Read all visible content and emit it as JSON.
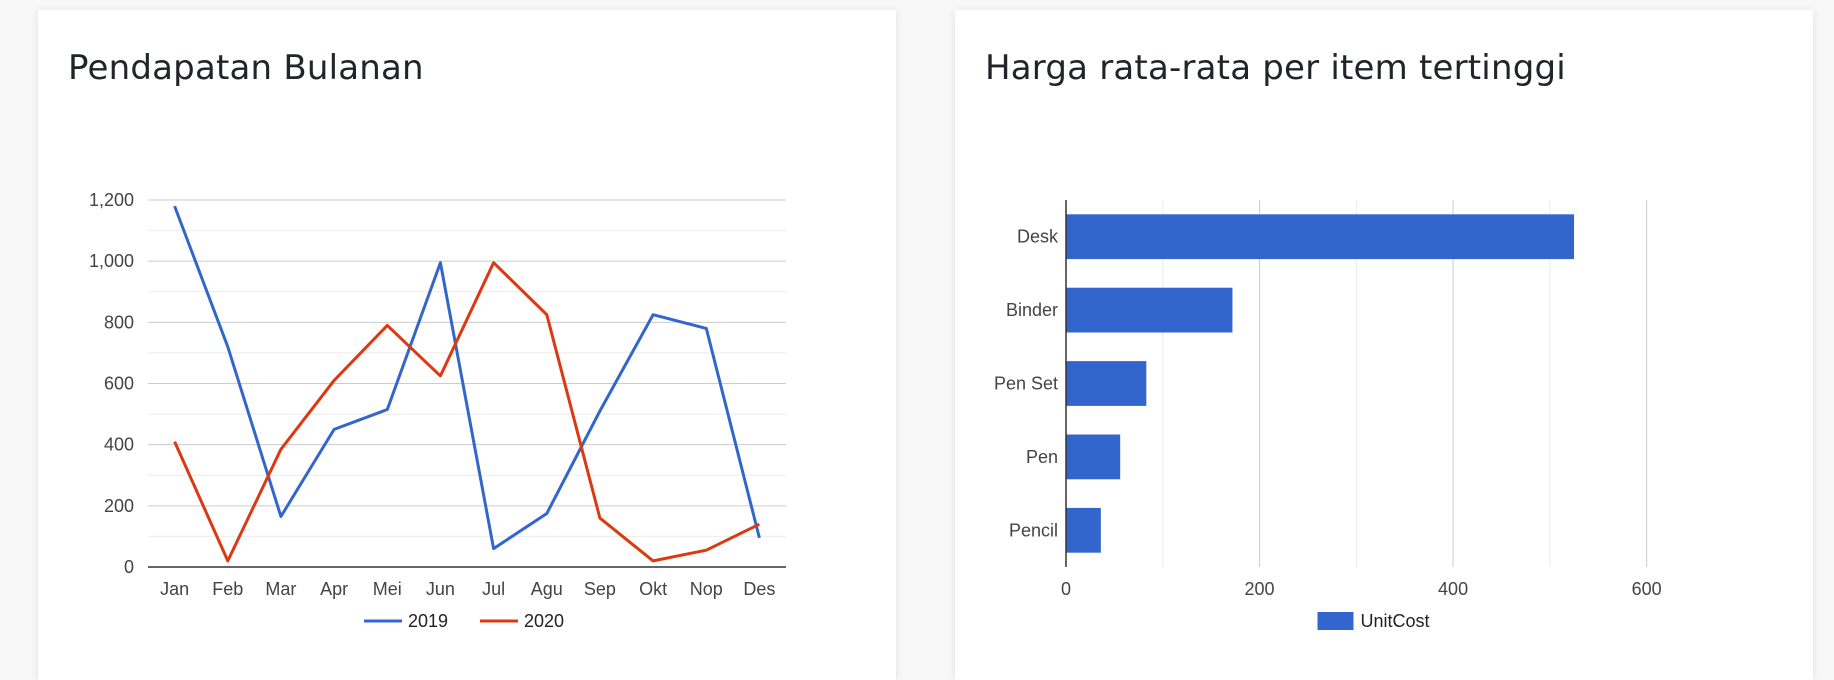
{
  "cards": [
    {
      "title": "Pendapatan Bulanan",
      "chart_data": {
        "type": "line",
        "title": "",
        "xlabel": "",
        "ylabel": "",
        "categories": [
          "Jan",
          "Feb",
          "Mar",
          "Apr",
          "Mei",
          "Jun",
          "Jul",
          "Agu",
          "Sep",
          "Okt",
          "Nop",
          "Des"
        ],
        "series": [
          {
            "name": "2019",
            "color": "#3366cc",
            "values": [
              1180,
              720,
              165,
              450,
              515,
              995,
              60,
              175,
              510,
              825,
              780,
              95
            ]
          },
          {
            "name": "2020",
            "color": "#dc3912",
            "values": [
              410,
              20,
              385,
              610,
              790,
              625,
              995,
              825,
              160,
              20,
              55,
              140
            ]
          }
        ],
        "ylim": [
          0,
          1200
        ],
        "yticks": [
          "0",
          "200",
          "400",
          "600",
          "800",
          "1,000",
          "1,200"
        ],
        "grid": true,
        "legend": "bottom"
      }
    },
    {
      "title": "Harga rata-rata per item tertinggi",
      "chart_data": {
        "type": "bar",
        "orientation": "horizontal",
        "title": "",
        "xlabel": "",
        "ylabel": "",
        "categories": [
          "Desk",
          "Binder",
          "Pen Set",
          "Pen",
          "Pencil"
        ],
        "series": [
          {
            "name": "UnitCost",
            "color": "#3366cc",
            "values": [
              525,
              172,
              83,
              56,
              36
            ]
          }
        ],
        "xlim": [
          0,
          650
        ],
        "xticks": [
          "0",
          "200",
          "400",
          "600"
        ],
        "grid": true,
        "legend": "bottom"
      }
    }
  ]
}
